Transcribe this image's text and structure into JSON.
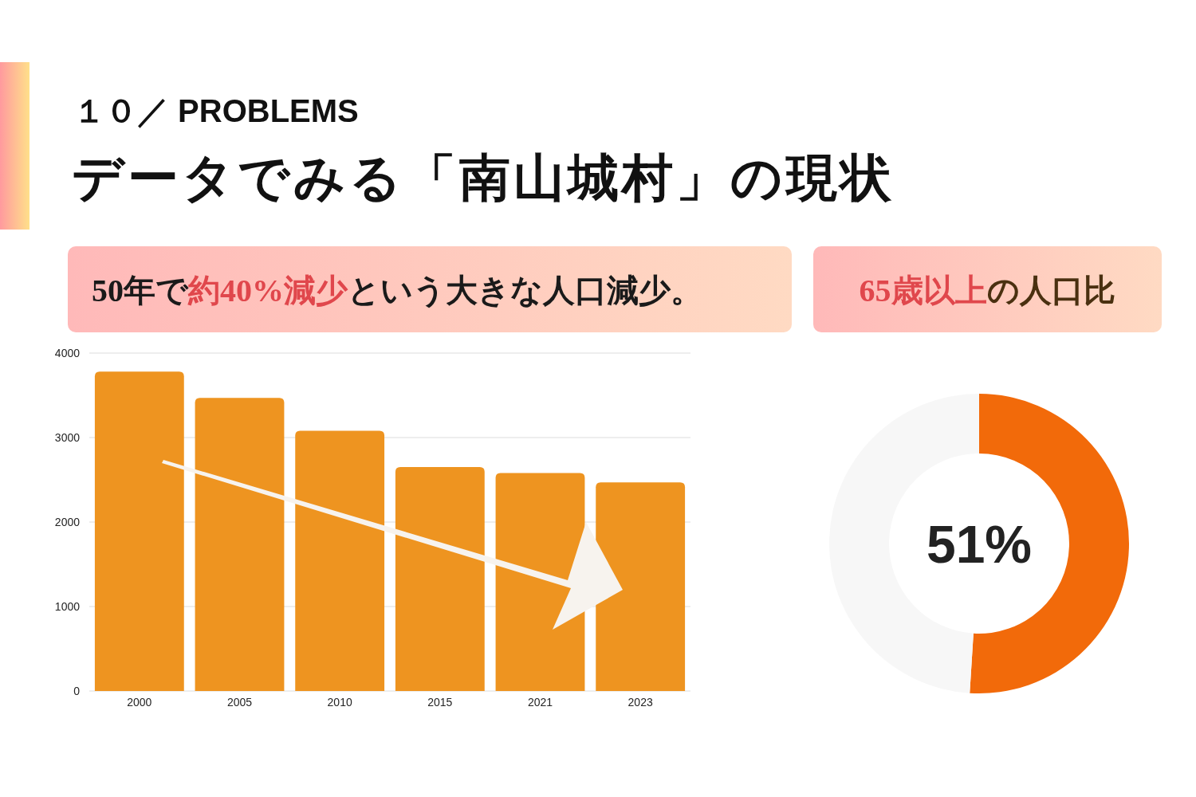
{
  "chart_data": [
    {
      "type": "bar",
      "title": "データでみる「南山城村」の現状",
      "subtitle": "50年で**約40%減少**という大きな人口減少。",
      "annotations": [
        "１０／ PROBLEMS"
      ],
      "categories": [
        "2000",
        "2005",
        "2010",
        "2015",
        "2021",
        "2023"
      ],
      "values": [
        3780,
        3470,
        3080,
        2650,
        2580,
        2470
      ],
      "color": "#ee9420",
      "ylim": [
        0,
        4000
      ],
      "yticks": [
        0,
        1000,
        2000,
        3000,
        4000
      ],
      "grid": "y"
    },
    {
      "type": "donut",
      "title": "**65歳以上**の人口比",
      "categories": [
        null,
        null
      ],
      "values": [
        51,
        49
      ],
      "colors": [
        "#f26a0a",
        "#f7f7f7"
      ],
      "value_labels": [
        "51%",
        null
      ]
    }
  ]
}
